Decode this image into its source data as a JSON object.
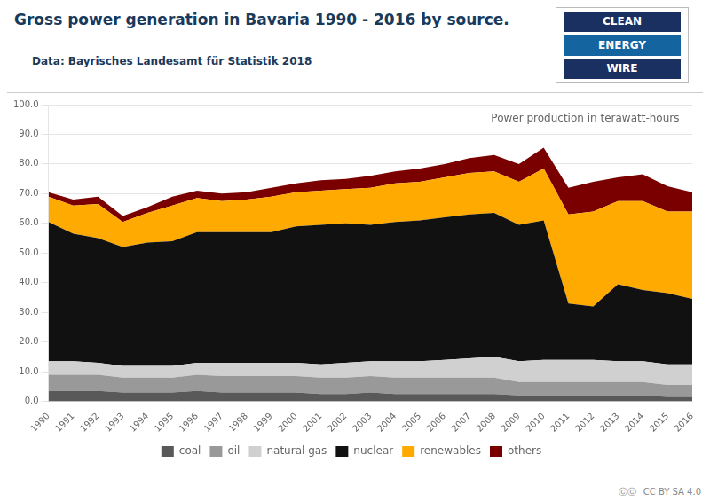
{
  "chart_data": {
    "type": "area",
    "title": "Gross power generation in Bavaria 1990 - 2016 by source.",
    "subtitle": "Data: Bayrisches Landesamt für Statistik 2018",
    "annotations": [
      "Power production in terawatt-hours",
      "CLEAN",
      "ENERGY",
      "WIRE",
      "ⒸⒸ",
      "CC BY SA 4.0"
    ],
    "x": [
      1990,
      1991,
      1992,
      1993,
      1994,
      1995,
      1996,
      1997,
      1998,
      1999,
      2000,
      2001,
      2002,
      2003,
      2004,
      2005,
      2006,
      2007,
      2008,
      2009,
      2010,
      2011,
      2012,
      2013,
      2014,
      2015,
      2016
    ],
    "series": [
      {
        "name": "coal",
        "color": "#595959",
        "values": [
          3.5,
          3.5,
          3.5,
          3.0,
          3.0,
          3.0,
          3.5,
          3.0,
          3.0,
          3.0,
          3.0,
          2.5,
          2.5,
          3.0,
          2.5,
          2.5,
          2.5,
          2.5,
          2.5,
          2.0,
          2.0,
          2.0,
          2.0,
          2.0,
          2.0,
          1.5,
          1.5
        ]
      },
      {
        "name": "oil",
        "color": "#999999",
        "values": [
          5.5,
          5.5,
          5.5,
          5.0,
          5.0,
          5.0,
          5.5,
          5.5,
          5.5,
          5.5,
          5.5,
          5.5,
          5.5,
          5.5,
          5.5,
          5.5,
          5.5,
          5.5,
          5.5,
          4.5,
          4.5,
          4.5,
          4.5,
          4.5,
          4.5,
          4.0,
          4.0
        ]
      },
      {
        "name": "natural gas",
        "color": "#d0d0d0",
        "values": [
          4.5,
          4.5,
          4.0,
          4.0,
          4.0,
          4.0,
          4.0,
          4.5,
          4.5,
          4.5,
          4.5,
          4.5,
          5.0,
          5.0,
          5.5,
          5.5,
          6.0,
          6.5,
          7.0,
          7.0,
          7.5,
          7.5,
          7.5,
          7.0,
          7.0,
          7.0,
          7.0
        ]
      },
      {
        "name": "nuclear",
        "color": "#111111",
        "values": [
          47.0,
          43.0,
          42.0,
          40.0,
          41.5,
          42.0,
          44.0,
          44.0,
          44.0,
          44.0,
          46.0,
          47.0,
          47.0,
          46.0,
          47.0,
          47.5,
          48.0,
          48.5,
          48.5,
          46.0,
          47.0,
          19.0,
          18.0,
          26.0,
          24.0,
          24.0,
          22.0
        ]
      },
      {
        "name": "renewables",
        "color": "#ffaa00",
        "values": [
          8.5,
          9.5,
          11.5,
          8.5,
          10.0,
          12.0,
          11.5,
          10.5,
          11.0,
          12.0,
          11.5,
          11.5,
          11.5,
          12.5,
          13.0,
          13.0,
          13.5,
          14.0,
          14.0,
          14.5,
          17.5,
          30.0,
          32.0,
          28.0,
          30.0,
          27.5,
          29.5
        ]
      },
      {
        "name": "others",
        "color": "#7a0000",
        "values": [
          1.5,
          2.0,
          2.5,
          2.0,
          2.0,
          3.0,
          2.5,
          2.5,
          2.5,
          3.0,
          3.0,
          3.5,
          3.5,
          4.0,
          4.0,
          4.5,
          4.5,
          5.0,
          5.5,
          6.0,
          7.0,
          9.0,
          10.0,
          8.0,
          9.0,
          8.5,
          6.5
        ]
      }
    ],
    "stacked": true,
    "xlim": [
      1990,
      2016
    ],
    "xticks": [
      1990,
      1991,
      1992,
      1993,
      1994,
      1995,
      1996,
      1997,
      1998,
      1999,
      2000,
      2001,
      2002,
      2003,
      2004,
      2005,
      2006,
      2007,
      2008,
      2009,
      2010,
      2011,
      2012,
      2013,
      2014,
      2015,
      2016
    ],
    "ylim": [
      0,
      100
    ],
    "yticks": [
      {
        "value": 0,
        "label": "0.0"
      },
      {
        "value": 10,
        "label": "10.0"
      },
      {
        "value": 20,
        "label": "20.0"
      },
      {
        "value": 30,
        "label": "30.0"
      },
      {
        "value": 40,
        "label": "40.0"
      },
      {
        "value": 50,
        "label": "50.0"
      },
      {
        "value": 60,
        "label": "60.0"
      },
      {
        "value": 70,
        "label": "70.0"
      },
      {
        "value": 80,
        "label": "80.0"
      },
      {
        "value": 90,
        "label": "90.0"
      },
      {
        "value": 100,
        "label": "100.0"
      }
    ],
    "grid": true,
    "legend": "bottom"
  }
}
